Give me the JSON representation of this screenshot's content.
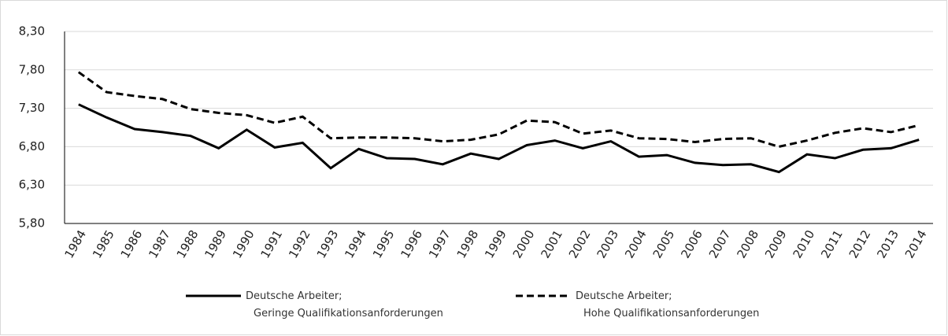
{
  "chart_data": {
    "type": "line",
    "categories": [
      "1984",
      "1985",
      "1986",
      "1987",
      "1988",
      "1989",
      "1990",
      "1991",
      "1992",
      "1993",
      "1994",
      "1995",
      "1996",
      "1997",
      "1998",
      "1999",
      "2000",
      "2001",
      "2002",
      "2003",
      "2004",
      "2005",
      "2006",
      "2007",
      "2008",
      "2009",
      "2010",
      "2011",
      "2012",
      "2013",
      "2014"
    ],
    "series": [
      {
        "name": "Deutsche Arbeiter;\nGeringe Qualifikationsanforderungen",
        "color": "#000000",
        "line_style": "solid",
        "values": [
          7.35,
          7.18,
          7.03,
          6.99,
          6.94,
          6.78,
          7.02,
          6.79,
          6.85,
          6.52,
          6.77,
          6.65,
          6.64,
          6.57,
          6.71,
          6.64,
          6.82,
          6.88,
          6.78,
          6.87,
          6.67,
          6.69,
          6.59,
          6.56,
          6.57,
          6.47,
          6.7,
          6.65,
          6.76,
          6.78,
          6.89
        ]
      },
      {
        "name": "Deutsche Arbeiter;\nHohe Qualifikationsanforderungen",
        "color": "#000000",
        "line_style": "dashed",
        "values": [
          7.77,
          7.51,
          7.46,
          7.42,
          7.29,
          7.24,
          7.21,
          7.11,
          7.19,
          6.91,
          6.92,
          6.92,
          6.91,
          6.87,
          6.89,
          6.96,
          7.14,
          7.12,
          6.97,
          7.01,
          6.91,
          6.9,
          6.86,
          6.9,
          6.91,
          6.8,
          6.88,
          6.98,
          7.04,
          6.99,
          7.08
        ]
      }
    ],
    "ylim": [
      5.8,
      8.3
    ],
    "yticks": [
      {
        "value": 5.8,
        "label": "5,80"
      },
      {
        "value": 6.3,
        "label": "6,30"
      },
      {
        "value": 6.8,
        "label": "6,80"
      },
      {
        "value": 7.3,
        "label": "7,30"
      },
      {
        "value": 7.8,
        "label": "7,80"
      },
      {
        "value": 8.3,
        "label": "8,30"
      }
    ],
    "grid": true,
    "legend": "bottom"
  }
}
